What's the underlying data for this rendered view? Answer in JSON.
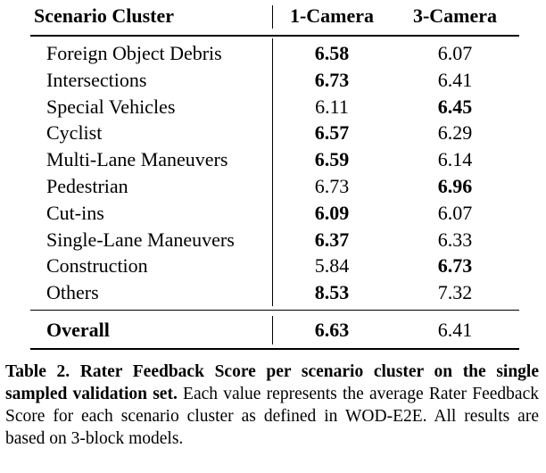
{
  "table": {
    "header": [
      "Scenario Cluster",
      "1-Camera",
      "3-Camera"
    ],
    "rows": [
      [
        "Foreign Object Debris",
        6.58,
        6.07
      ],
      [
        "Intersections",
        6.73,
        6.41
      ],
      [
        "Special Vehicles",
        6.11,
        6.45
      ],
      [
        "Cyclist",
        6.57,
        6.29
      ],
      [
        "Multi-Lane Maneuvers",
        6.59,
        6.14
      ],
      [
        "Pedestrian",
        6.73,
        6.96
      ],
      [
        "Cut-ins",
        6.09,
        6.07
      ],
      [
        "Single-Lane Maneuvers",
        6.37,
        6.33
      ],
      [
        "Construction",
        5.84,
        6.73
      ],
      [
        "Others",
        8.53,
        7.32
      ]
    ],
    "overall": [
      "Overall",
      6.63,
      6.41
    ]
  },
  "caption": {
    "label": "Table 2.",
    "title": "Rater Feedback Score per scenario cluster on the single sampled validation set.",
    "text": "Each value represents the average Rater Feedback Score for each scenario cluster as defined in WOD-E2E. All results are based on 3-block models."
  }
}
